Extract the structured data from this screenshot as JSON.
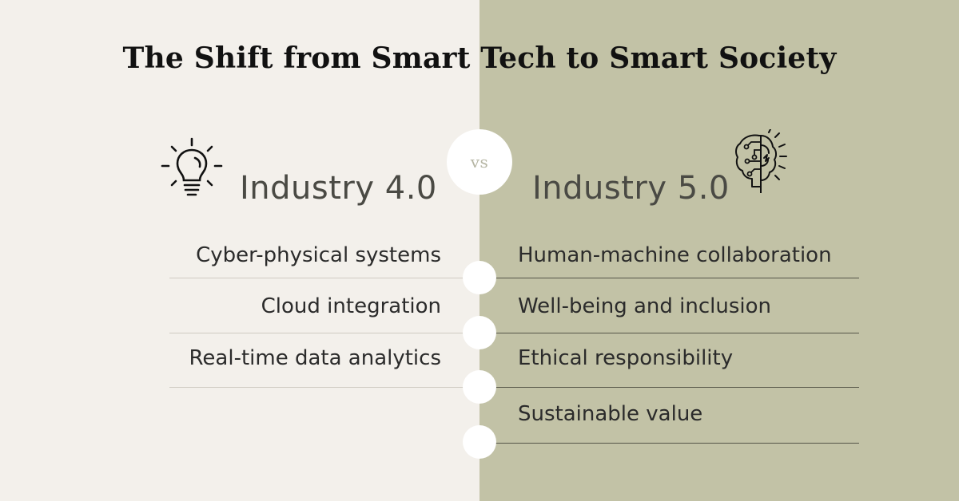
{
  "title": "The Shift from Smart Tech to Smart Society",
  "vs_label": "vs",
  "left": {
    "heading": "Industry 4.0",
    "icon": "lightbulb-icon",
    "items": [
      "Cyber-physical systems",
      "Cloud integration",
      "Real-time data analytics"
    ]
  },
  "right": {
    "heading": "Industry 5.0",
    "icon": "brain-circuit-icon",
    "items": [
      "Human-machine collaboration",
      "Well-being and inclusion",
      "Ethical responsibility",
      "Sustainable value"
    ]
  },
  "colors": {
    "left_background": "#f3f0eb",
    "right_background": "#c2c2a6",
    "node": "#ffffff"
  }
}
